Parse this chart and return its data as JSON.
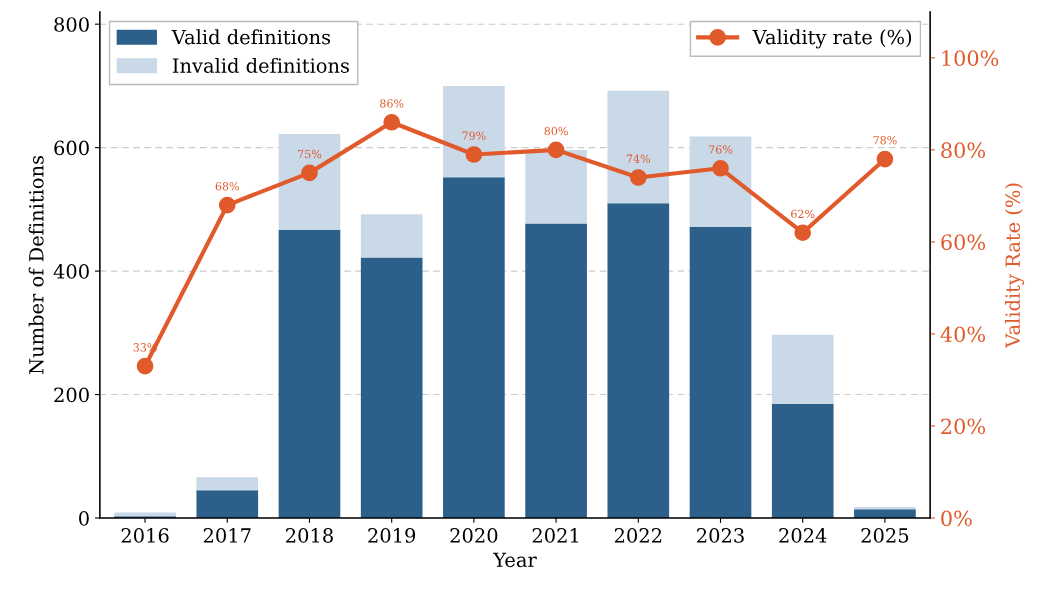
{
  "chart_data": {
    "type": "bar",
    "stacked": true,
    "xlabel": "Year",
    "ylabel": "Number of Definitions",
    "y2label": "Validity Rate (%)",
    "categories": [
      "2016",
      "2017",
      "2018",
      "2019",
      "2020",
      "2021",
      "2022",
      "2023",
      "2024",
      "2025"
    ],
    "series": [
      {
        "name": "Valid definitions",
        "color": "#2c5f8a",
        "values": [
          3,
          45,
          467,
          422,
          552,
          477,
          510,
          472,
          185,
          14
        ]
      },
      {
        "name": "Invalid definitions",
        "color": "#c9d9e8",
        "values": [
          6,
          21,
          155,
          70,
          148,
          119,
          182,
          146,
          112,
          4
        ]
      },
      {
        "name": "Validity rate (%)",
        "type": "line",
        "axis": "y2",
        "color": "#e05a2b",
        "marker": "circle",
        "values": [
          33,
          68,
          75,
          86,
          79,
          80,
          74,
          76,
          62,
          78
        ],
        "value_labels": [
          "33%",
          "68%",
          "75%",
          "86%",
          "79%",
          "80%",
          "74%",
          "76%",
          "62%",
          "78%"
        ]
      }
    ],
    "ylim": [
      0,
      820
    ],
    "yticks": [
      0,
      200,
      400,
      600,
      800
    ],
    "y2lim": [
      0,
      110
    ],
    "y2ticks": [
      {
        "value": 0,
        "label": "0%"
      },
      {
        "value": 20,
        "label": "20%"
      },
      {
        "value": 40,
        "label": "40%"
      },
      {
        "value": 60,
        "label": "60%"
      },
      {
        "value": 80,
        "label": "80%"
      },
      {
        "value": 100,
        "label": "100%"
      }
    ],
    "grid": "y",
    "legend": "top"
  }
}
